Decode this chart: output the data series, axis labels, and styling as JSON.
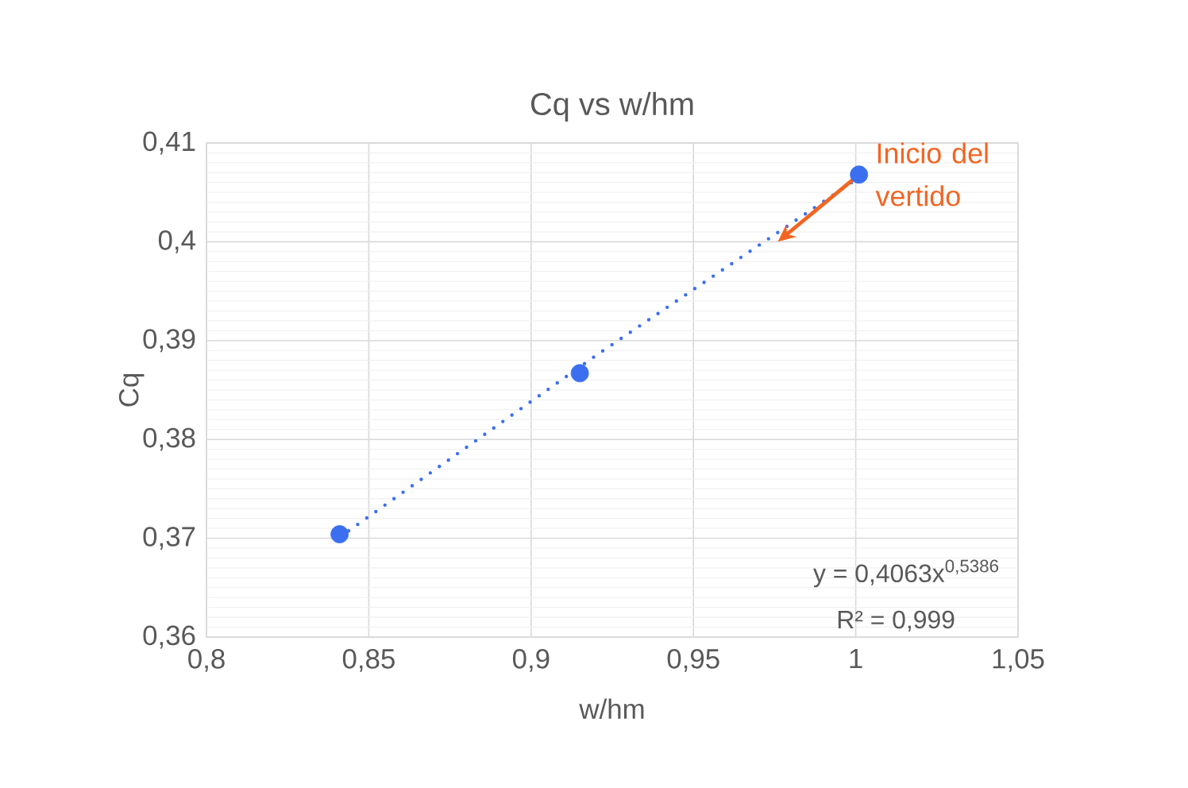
{
  "chart_data": {
    "type": "scatter",
    "title": "Cq vs w/hm",
    "xlabel": "w/hm",
    "ylabel": "Cq",
    "series": [
      {
        "color": "#3b6ff0",
        "marker": "circle",
        "x": [
          0.841,
          0.915,
          1.001
        ],
        "values": [
          0.3704,
          0.3867,
          0.4068
        ]
      },
      {
        "type": "line",
        "color": "#3b6ff0",
        "line_style": "dotted",
        "marker": "none",
        "x": [
          0.841,
          0.92,
          1.001
        ],
        "values": [
          0.3701,
          0.3885,
          0.4065
        ]
      }
    ],
    "annotations": [
      {
        "text": "Inicio del vertido",
        "x": 0.976,
        "y": 0.4
      },
      "y = 0,4063x$^{0,5386}$",
      "R² = 0,999"
    ],
    "xlim": [
      0.8,
      1.05
    ],
    "ylim": [
      0.36,
      0.41
    ],
    "xticks": [
      {
        "value": 0.8,
        "label": "0,8"
      },
      {
        "value": 0.85,
        "label": "0,85"
      },
      {
        "value": 0.9,
        "label": "0,9"
      },
      {
        "value": 0.95,
        "label": "0,95"
      },
      {
        "value": 1,
        "label": "1"
      },
      {
        "value": 1.05,
        "label": "1,05"
      }
    ],
    "yticks": [
      {
        "value": 0.36,
        "label": "0,36"
      },
      {
        "value": 0.37,
        "label": "0,37"
      },
      {
        "value": 0.38,
        "label": "0,38"
      },
      {
        "value": 0.39,
        "label": "0,39"
      },
      {
        "value": 0.4,
        "label": "0,4"
      },
      {
        "value": 0.41,
        "label": "0,41"
      }
    ],
    "grid": true
  }
}
